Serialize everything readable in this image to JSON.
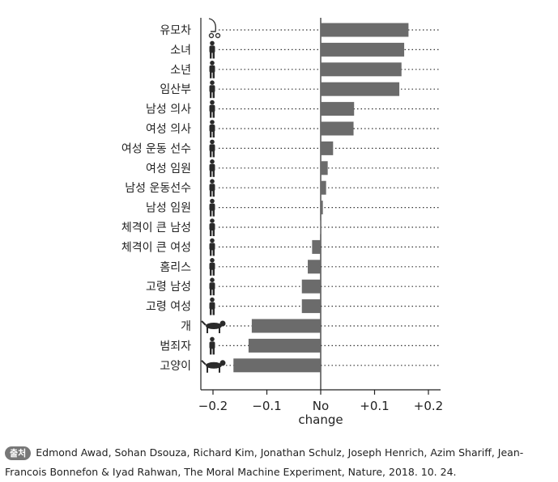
{
  "chart_data": {
    "type": "bar",
    "orientation": "horizontal",
    "categories": [
      "유모차",
      "소녀",
      "소년",
      "임산부",
      "남성 의사",
      "여성 의사",
      "여성 운동 선수",
      "여성 임원",
      "남성 운동선수",
      "남성 임원",
      "체격이 큰 남성",
      "체격이 큰 여성",
      "홈리스",
      "고령 남성",
      "고령 여성",
      "개",
      "범죄자",
      "고양이"
    ],
    "icons": [
      "stroller-icon",
      "girl-icon",
      "boy-icon",
      "pregnant-woman-icon",
      "male-doctor-icon",
      "female-doctor-icon",
      "female-athlete-icon",
      "female-executive-icon",
      "male-athlete-icon",
      "male-executive-icon",
      "large-man-icon",
      "large-woman-icon",
      "homeless-icon",
      "elderly-man-icon",
      "elderly-woman-icon",
      "dog-icon",
      "criminal-icon",
      "cat-icon"
    ],
    "values": [
      0.163,
      0.155,
      0.15,
      0.146,
      0.062,
      0.061,
      0.023,
      0.013,
      0.01,
      0.004,
      -0.001,
      -0.016,
      -0.024,
      -0.035,
      -0.035,
      -0.128,
      -0.134,
      -0.162
    ],
    "xlim": [
      -0.235,
      0.225
    ],
    "xticks": [
      "−0.2",
      "−0.1",
      "No\nchange",
      "+0.1",
      "+0.2"
    ],
    "xtick_values": [
      -0.2,
      -0.1,
      0,
      0.1,
      0.2
    ],
    "bar_color": "#6b6b6b"
  },
  "caption": {
    "badge": "출처",
    "text": "Edmond Awad, Sohan Dsouza, Richard Kim, Jonathan Schulz, Joseph Henrich, Azim Shariff, Jean-Francois Bonnefon & Iyad Rahwan, The Moral Machine Experiment, Nature, 2018. 10. 24."
  }
}
